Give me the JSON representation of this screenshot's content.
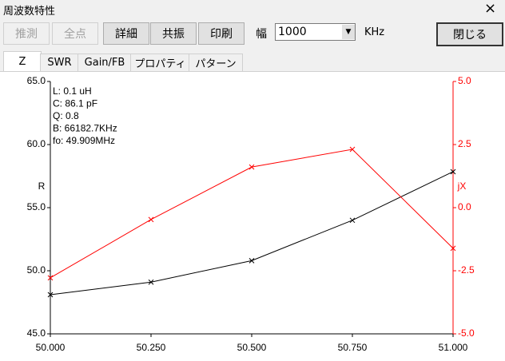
{
  "window": {
    "title": "周波数特性",
    "close": "×"
  },
  "toolbar": {
    "buttons": [
      {
        "label": "推測",
        "enabled": false
      },
      {
        "label": "全点",
        "enabled": false
      },
      {
        "label": "詳細",
        "enabled": true
      },
      {
        "label": "共振",
        "enabled": true
      },
      {
        "label": "印刷",
        "enabled": true
      }
    ],
    "width_label": "幅",
    "width_value": "1000",
    "unit": "KHz",
    "close_button": "閉じる"
  },
  "tabs": [
    "Z",
    "SWR",
    "Gain/FB",
    "プロパティ",
    "パターン"
  ],
  "chart_data": {
    "type": "line",
    "x": [
      50,
      50.25,
      50.5,
      50.75,
      51
    ],
    "xlim": [
      50,
      51
    ],
    "xticks": [
      {
        "value": 50,
        "label": "50.000"
      },
      {
        "value": 50.25,
        "label": "50.250"
      },
      {
        "value": 50.5,
        "label": "50.500"
      },
      {
        "value": 50.75,
        "label": "50.750"
      },
      {
        "value": 51,
        "label": "51.000"
      }
    ],
    "ylim": [
      45,
      65
    ],
    "yticks": [
      {
        "value": 45,
        "label": "45.0"
      },
      {
        "value": 50,
        "label": "50.0"
      },
      {
        "value": 55,
        "label": "55.0"
      },
      {
        "value": 60,
        "label": "60.0"
      },
      {
        "value": 65,
        "label": "65.0"
      }
    ],
    "y2lim": [
      -5,
      5
    ],
    "y2ticks": [
      {
        "value": -5,
        "label": "-5.0"
      },
      {
        "value": -2.5,
        "label": "-2.5"
      },
      {
        "value": 0,
        "label": "0.0"
      },
      {
        "value": 2.5,
        "label": "2.5"
      },
      {
        "value": 5,
        "label": "5.0"
      }
    ],
    "y_label": "R",
    "y2_label": "jX",
    "y2_color": "#ff0000",
    "annotations": [
      "L: 0.1 uH",
      "C: 86.1 pF",
      "Q: 0.8",
      "B: 66182.7KHz",
      "fo: 49.909MHz"
    ],
    "series": [
      {
        "color": "#000000",
        "values": [
          48.1,
          49.1,
          50.8,
          54.0,
          57.85
        ]
      },
      {
        "color": "#ff0000",
        "axis": "y2",
        "values": [
          -2.78,
          -0.47,
          1.61,
          2.31,
          -1.61
        ]
      }
    ]
  }
}
